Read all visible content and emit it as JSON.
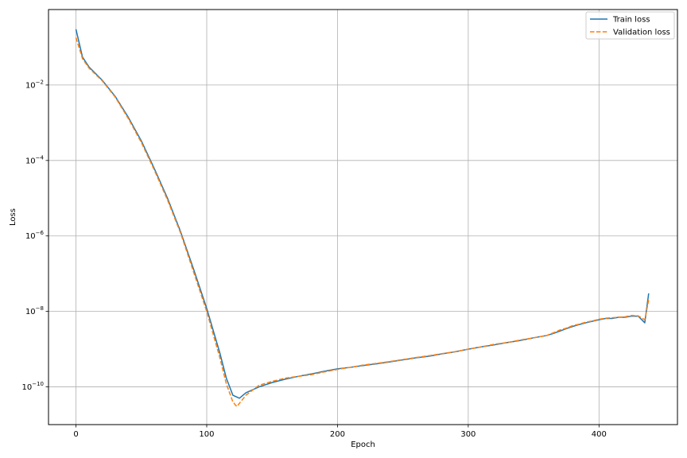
{
  "chart_data": {
    "type": "line",
    "xlabel": "Epoch",
    "ylabel": "Loss",
    "xlim": [
      -21,
      460
    ],
    "ylim": [
      1e-11,
      1
    ],
    "y_scale": "log",
    "grid": true,
    "legend_position": "top-right",
    "x_ticks": [
      0,
      100,
      200,
      300,
      400
    ],
    "y_ticks": [
      {
        "value": 0.01,
        "base": "10",
        "exp": "−2"
      },
      {
        "value": 0.0001,
        "base": "10",
        "exp": "−4"
      },
      {
        "value": 1e-06,
        "base": "10",
        "exp": "−6"
      },
      {
        "value": 1e-08,
        "base": "10",
        "exp": "−8"
      },
      {
        "value": 1e-10,
        "base": "10",
        "exp": "−10"
      }
    ],
    "series": [
      {
        "name": "Train loss",
        "color": "#1f77b4",
        "style": "solid",
        "points": [
          [
            0,
            0.3
          ],
          [
            5,
            0.055
          ],
          [
            10,
            0.03
          ],
          [
            20,
            0.0135
          ],
          [
            30,
            0.005
          ],
          [
            40,
            0.0014
          ],
          [
            50,
            0.00033
          ],
          [
            60,
            6e-05
          ],
          [
            70,
            1e-05
          ],
          [
            80,
            1.3e-06
          ],
          [
            90,
            1.3e-07
          ],
          [
            100,
            1.2e-08
          ],
          [
            110,
            8e-10
          ],
          [
            115,
            1.7e-10
          ],
          [
            120,
            6e-11
          ],
          [
            125,
            5e-11
          ],
          [
            130,
            7e-11
          ],
          [
            140,
            1e-10
          ],
          [
            150,
            1.3e-10
          ],
          [
            160,
            1.6e-10
          ],
          [
            170,
            1.9e-10
          ],
          [
            180,
            2.2e-10
          ],
          [
            190,
            2.6e-10
          ],
          [
            200,
            3e-10
          ],
          [
            210,
            3.3e-10
          ],
          [
            220,
            3.7e-10
          ],
          [
            230,
            4.1e-10
          ],
          [
            240,
            4.6e-10
          ],
          [
            250,
            5.2e-10
          ],
          [
            260,
            5.9e-10
          ],
          [
            270,
            6.5e-10
          ],
          [
            280,
            7.5e-10
          ],
          [
            290,
            8.5e-10
          ],
          [
            300,
            1e-09
          ],
          [
            310,
            1.15e-09
          ],
          [
            320,
            1.3e-09
          ],
          [
            330,
            1.5e-09
          ],
          [
            340,
            1.7e-09
          ],
          [
            350,
            2e-09
          ],
          [
            360,
            2.3e-09
          ],
          [
            365,
            2.6e-09
          ],
          [
            370,
            3e-09
          ],
          [
            375,
            3.5e-09
          ],
          [
            380,
            4e-09
          ],
          [
            385,
            4.5e-09
          ],
          [
            390,
            5e-09
          ],
          [
            395,
            5.5e-09
          ],
          [
            400,
            6e-09
          ],
          [
            405,
            6.5e-09
          ],
          [
            410,
            6.5e-09
          ],
          [
            415,
            7e-09
          ],
          [
            420,
            7e-09
          ],
          [
            425,
            7.5e-09
          ],
          [
            430,
            7.5e-09
          ],
          [
            435,
            5e-09
          ],
          [
            438,
            3e-08
          ]
        ]
      },
      {
        "name": "Validation loss",
        "color": "#ff7f0e",
        "style": "dashed",
        "points": [
          [
            0,
            0.18
          ],
          [
            5,
            0.05
          ],
          [
            10,
            0.028
          ],
          [
            20,
            0.013
          ],
          [
            30,
            0.0048
          ],
          [
            40,
            0.0013
          ],
          [
            50,
            0.0003
          ],
          [
            60,
            5.5e-05
          ],
          [
            70,
            9e-06
          ],
          [
            80,
            1.2e-06
          ],
          [
            90,
            1.1e-07
          ],
          [
            100,
            1e-08
          ],
          [
            110,
            6e-10
          ],
          [
            115,
            1.2e-10
          ],
          [
            120,
            4e-11
          ],
          [
            123,
            3e-11
          ],
          [
            130,
            6e-11
          ],
          [
            140,
            1.1e-10
          ],
          [
            150,
            1.4e-10
          ],
          [
            160,
            1.7e-10
          ],
          [
            170,
            1.9e-10
          ],
          [
            180,
            2.1e-10
          ],
          [
            190,
            2.5e-10
          ],
          [
            200,
            2.9e-10
          ],
          [
            210,
            3.3e-10
          ],
          [
            220,
            3.8e-10
          ],
          [
            230,
            4.2e-10
          ],
          [
            240,
            4.7e-10
          ],
          [
            250,
            5.3e-10
          ],
          [
            260,
            6e-10
          ],
          [
            270,
            6.7e-10
          ],
          [
            280,
            7.6e-10
          ],
          [
            290,
            8.6e-10
          ],
          [
            300,
            1e-09
          ],
          [
            310,
            1.15e-09
          ],
          [
            320,
            1.35e-09
          ],
          [
            330,
            1.5e-09
          ],
          [
            340,
            1.75e-09
          ],
          [
            350,
            2e-09
          ],
          [
            360,
            2.3e-09
          ],
          [
            365,
            2.7e-09
          ],
          [
            370,
            3.2e-09
          ],
          [
            375,
            3.6e-09
          ],
          [
            380,
            4.2e-09
          ],
          [
            385,
            4.6e-09
          ],
          [
            390,
            5.2e-09
          ],
          [
            395,
            5.6e-09
          ],
          [
            400,
            6.2e-09
          ],
          [
            405,
            6.6e-09
          ],
          [
            410,
            6.8e-09
          ],
          [
            415,
            7e-09
          ],
          [
            420,
            7.2e-09
          ],
          [
            425,
            7.8e-09
          ],
          [
            430,
            7.6e-09
          ],
          [
            435,
            6e-09
          ],
          [
            438,
            2e-08
          ]
        ]
      }
    ]
  }
}
